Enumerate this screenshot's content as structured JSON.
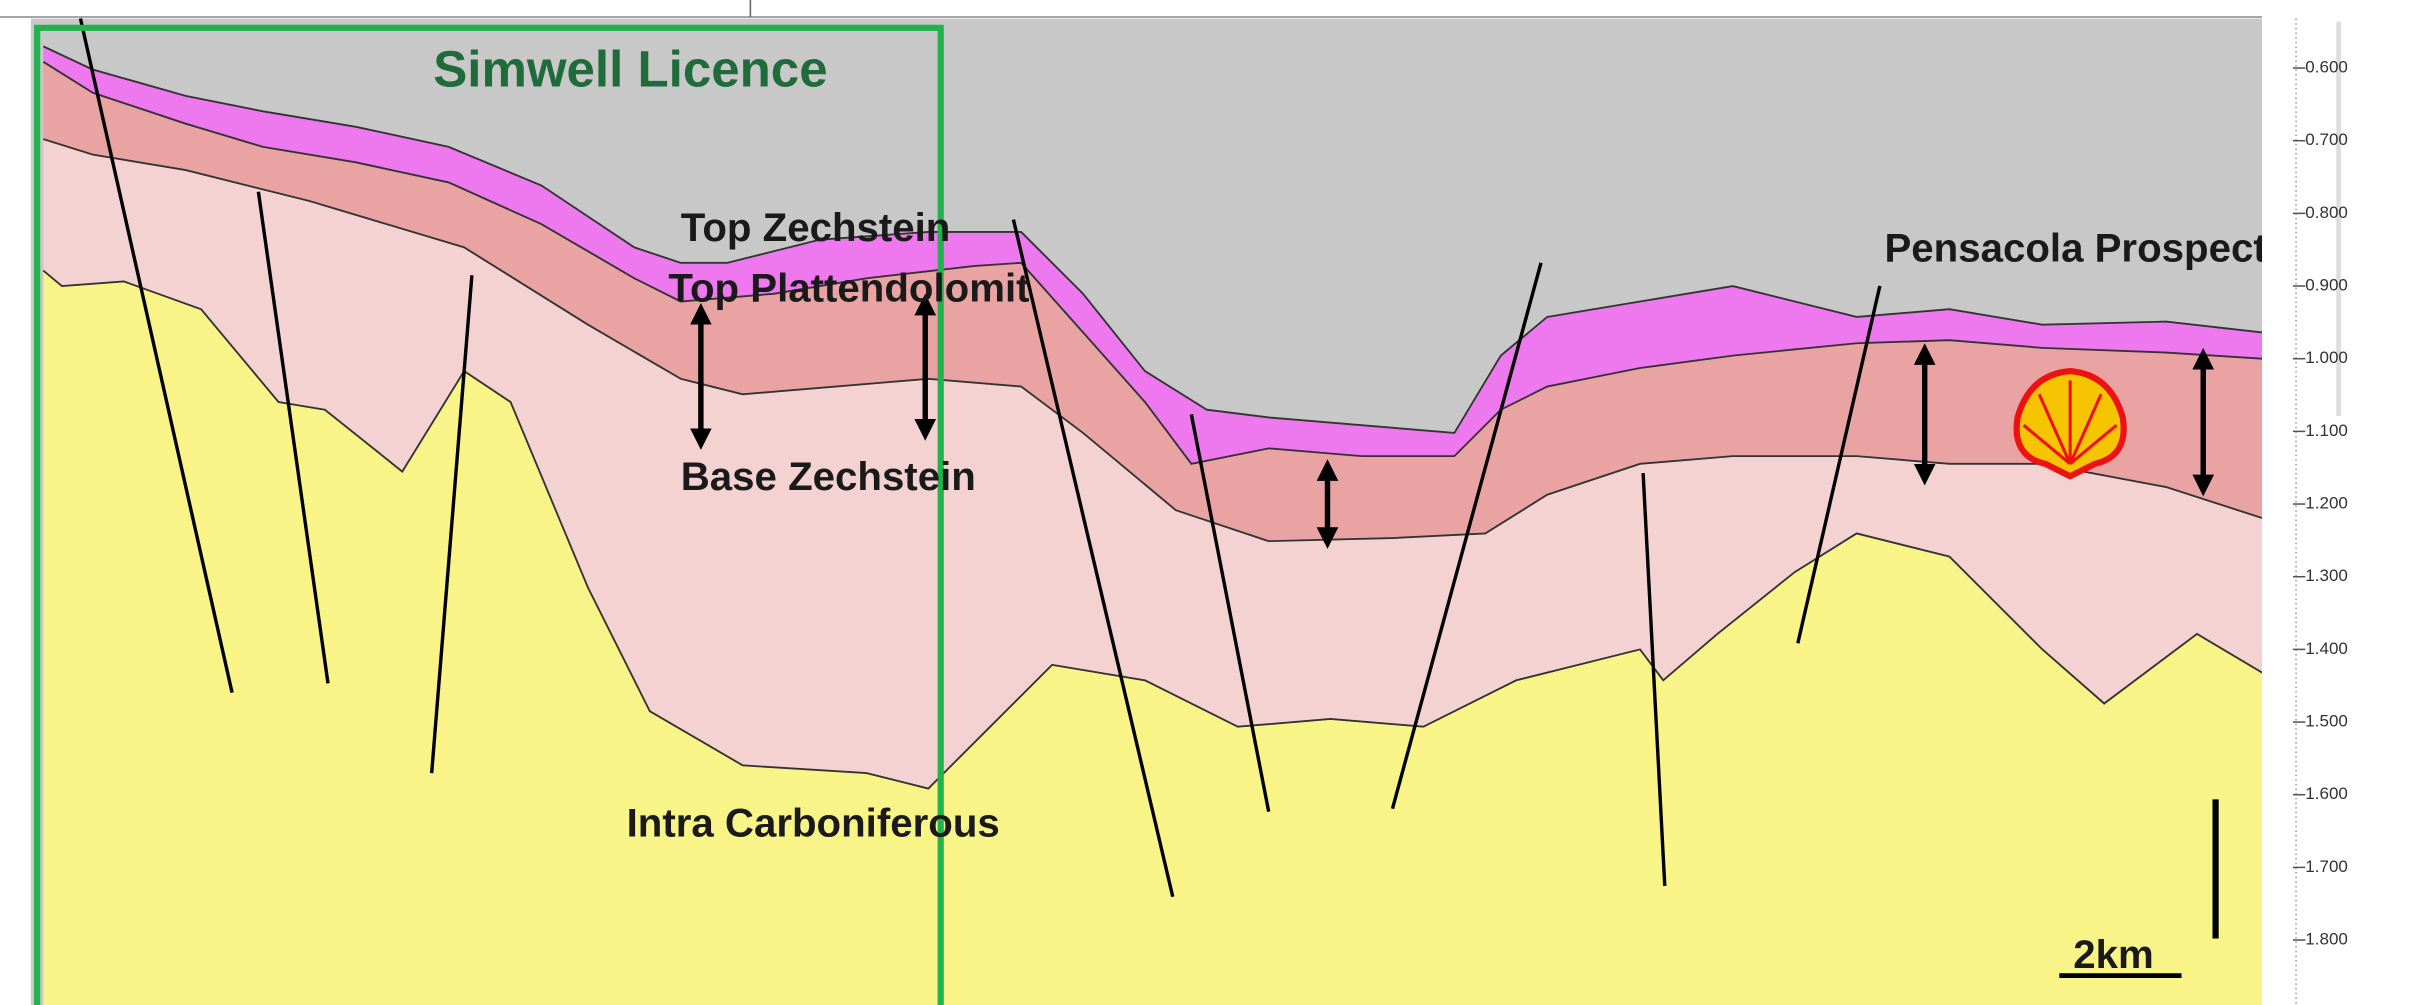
{
  "licence": {
    "title": "Simwell Licence"
  },
  "horizons": {
    "top_zechstein": "Top Zechstein",
    "top_plattendolomit": "Top Plattendolomit",
    "base_zechstein": "Base Zechstein",
    "intra_carboniferous": "Intra Carboniferous"
  },
  "prospect": {
    "label": "Pensacola Prospect"
  },
  "scale_bar": {
    "label": "2km"
  },
  "depth_axis": {
    "ticks": [
      "0.600",
      "0.700",
      "0.800",
      "0.900",
      "1.000",
      "1.100",
      "1.200",
      "1.300",
      "1.400",
      "1.500",
      "1.600",
      "1.700",
      "1.800"
    ]
  }
}
